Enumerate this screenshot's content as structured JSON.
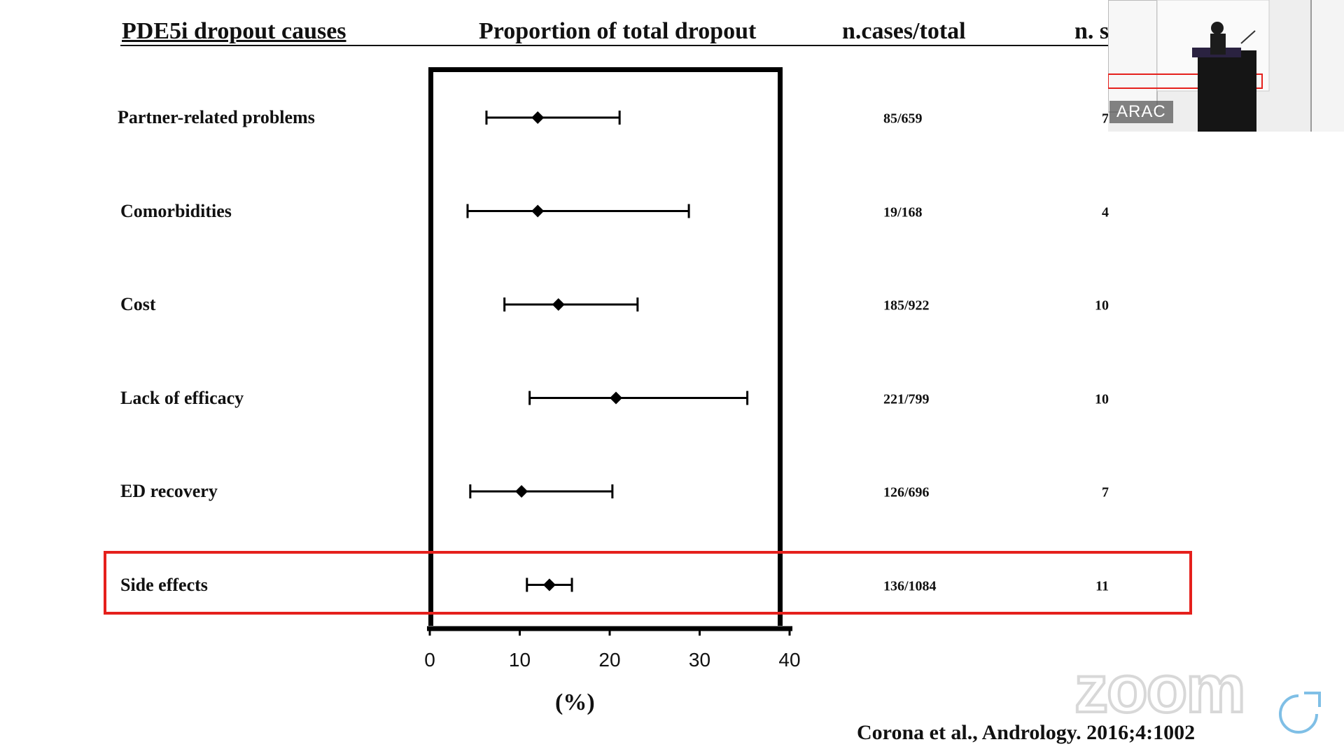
{
  "headers": {
    "causes": "PDE5i dropout causes",
    "proportion": "Proportion of total dropout",
    "cases": "n.cases/total",
    "studies": "n. s"
  },
  "chart_data": {
    "type": "forest",
    "xlabel": "(%)",
    "xlim": [
      0,
      40
    ],
    "xticks": [
      0,
      10,
      20,
      30,
      40
    ],
    "rows": [
      {
        "label": "Partner-related problems",
        "estimate": 12,
        "ci_low": 6.3,
        "ci_high": 21.1,
        "cases": "85/659",
        "studies": "7"
      },
      {
        "label": "Comorbidities",
        "estimate": 12,
        "ci_low": 4.2,
        "ci_high": 28.8,
        "cases": "19/168",
        "studies": "4"
      },
      {
        "label": "Cost",
        "estimate": 14.3,
        "ci_low": 8.3,
        "ci_high": 23.1,
        "cases": "185/922",
        "studies": "10"
      },
      {
        "label": "Lack of efficacy",
        "estimate": 20.7,
        "ci_low": 11.1,
        "ci_high": 35.3,
        "cases": "221/799",
        "studies": "10"
      },
      {
        "label": "ED recovery",
        "estimate": 10.2,
        "ci_low": 4.5,
        "ci_high": 20.3,
        "cases": "126/696",
        "studies": "7"
      },
      {
        "label": "Side effects",
        "estimate": 13.3,
        "ci_low": 10.8,
        "ci_high": 15.8,
        "cases": "136/1084",
        "studies": "11"
      }
    ],
    "highlighted_row": "Side effects",
    "highlight_color": "#e5201c"
  },
  "citation": "Corona et al., Andrology. 2016;4:1002",
  "speaker_video": {
    "name_tag": "ARAC"
  },
  "overlay": {
    "logo_text": "zoom"
  }
}
